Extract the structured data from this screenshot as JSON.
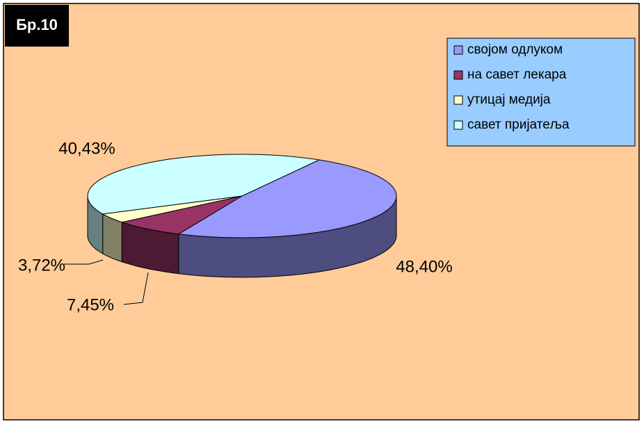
{
  "chart_data": {
    "type": "pie",
    "title": "Бр.10",
    "categories": [
      "својом одлуком",
      "на савет лекара",
      "утицај медија",
      "савет пријатеља"
    ],
    "values": [
      48.4,
      7.45,
      3.72,
      40.43
    ],
    "value_labels": [
      "48,40%",
      "7,45%",
      "3,72%",
      "40,43%"
    ],
    "colors": [
      "#9999FF",
      "#993366",
      "#FFFFCC",
      "#CCFFFF"
    ],
    "legend": "top-right"
  }
}
